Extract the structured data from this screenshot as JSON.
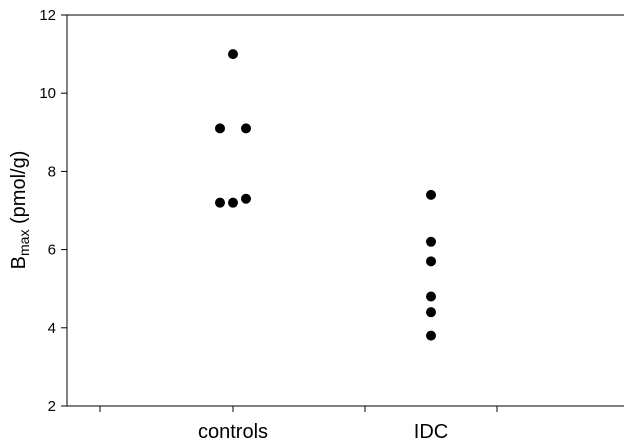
{
  "chart_data": {
    "type": "scatter",
    "title": "",
    "ylabel": {
      "main": "B",
      "subscript": "max",
      "rest": " (pmol/g)"
    },
    "xlabel": "",
    "ylim": [
      2,
      12
    ],
    "yticks": [
      "2",
      "4",
      "6",
      "8",
      "10",
      "12"
    ],
    "categories": [
      "controls",
      "IDC"
    ],
    "series": [
      {
        "category": "controls",
        "points": [
          {
            "offset": 0,
            "y": 11.0
          },
          {
            "offset": -1,
            "y": 9.1
          },
          {
            "offset": 1,
            "y": 9.1
          },
          {
            "offset": -1,
            "y": 7.2
          },
          {
            "offset": 0,
            "y": 7.2
          },
          {
            "offset": 1,
            "y": 7.3
          }
        ]
      },
      {
        "category": "IDC",
        "points": [
          {
            "offset": 0,
            "y": 7.4
          },
          {
            "offset": 0,
            "y": 6.2
          },
          {
            "offset": 0,
            "y": 5.7
          },
          {
            "offset": 0,
            "y": 4.8
          },
          {
            "offset": 0,
            "y": 4.4
          },
          {
            "offset": 0,
            "y": 3.8
          }
        ]
      }
    ],
    "marker_color": "#000000",
    "grid": false,
    "legend": "none"
  }
}
